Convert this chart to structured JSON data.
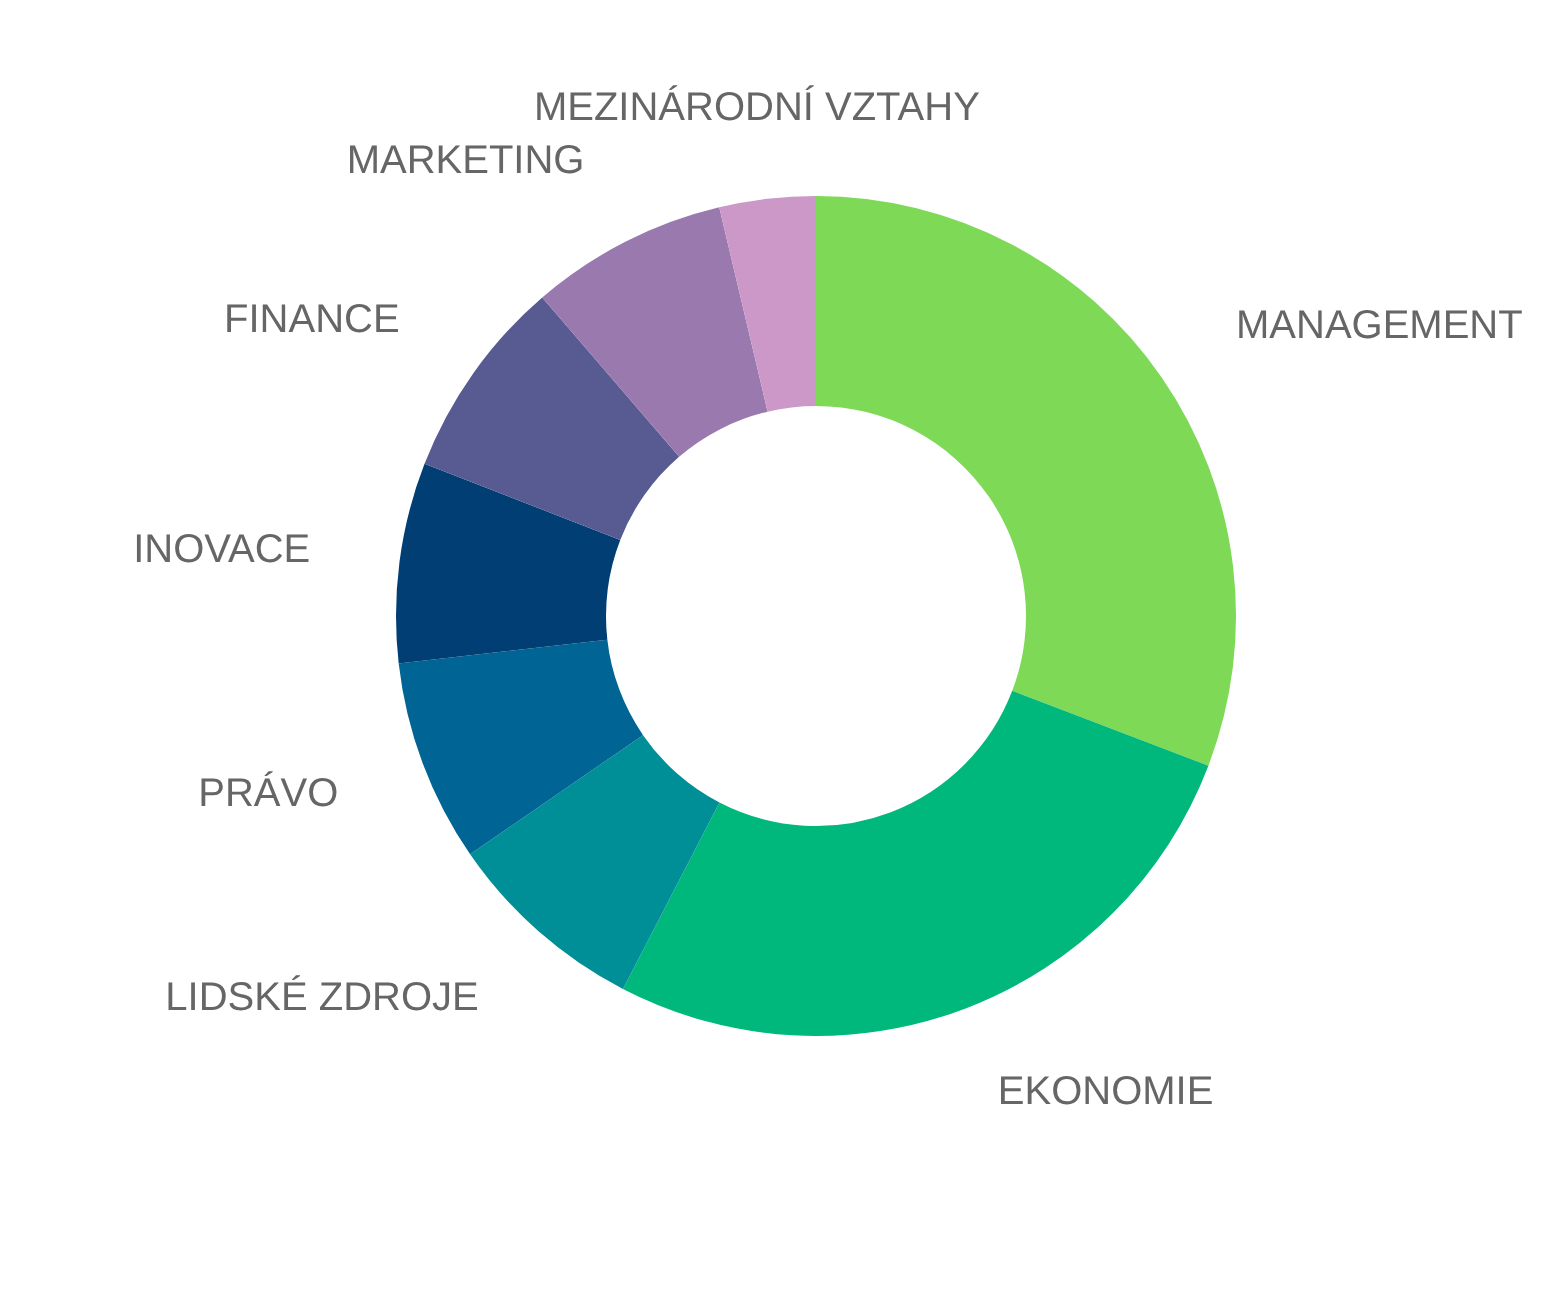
{
  "chart_data": {
    "type": "donut",
    "categories": [
      "MANAGEMENT",
      "EKONOMIE",
      "LIDSKÉ ZDROJE",
      "PRÁVO",
      "INOVACE",
      "FINANCE",
      "MARKETING",
      "MEZINÁRODNÍ VZTAHY"
    ],
    "values": [
      30.8,
      26.8,
      7.8,
      7.8,
      7.7,
      7.8,
      7.6,
      3.7
    ],
    "colors": [
      "#7ed957",
      "#00b87c",
      "#008f96",
      "#006494",
      "#003e73",
      "#575b92",
      "#9a79ae",
      "#cc98c8"
    ],
    "legend": false
  }
}
